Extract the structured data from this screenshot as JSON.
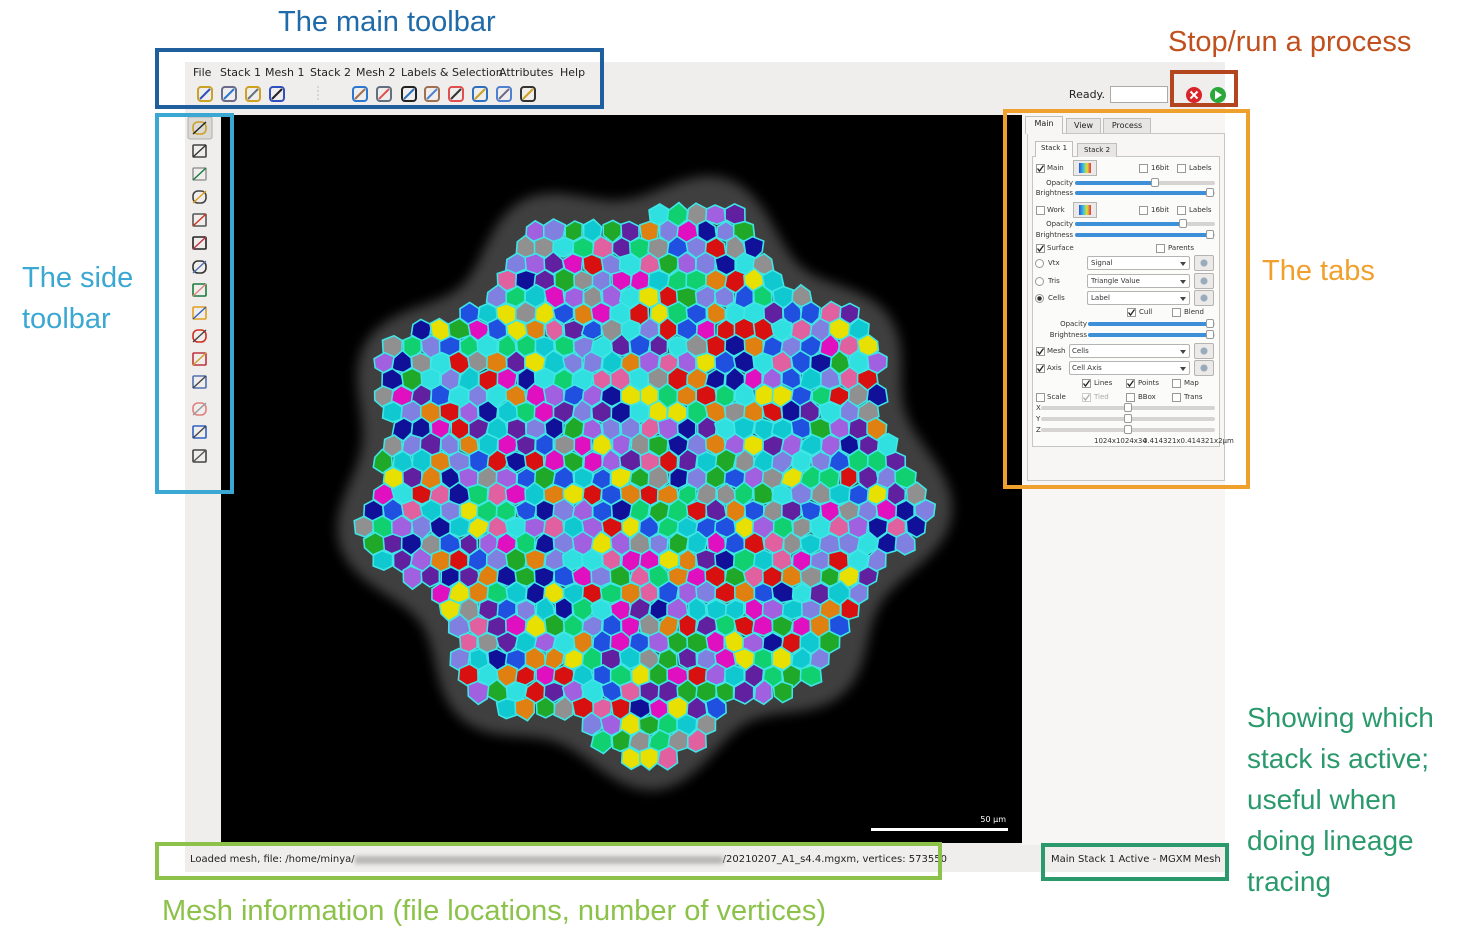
{
  "annotations": {
    "main_toolbar": "The main toolbar",
    "stop_run": "Stop/run a process",
    "side_toolbar": [
      "The side",
      "toolbar"
    ],
    "tabs": "The tabs",
    "active_stack": [
      "Showing which",
      "stack is active;",
      "useful when",
      "doing lineage",
      "tracing"
    ],
    "mesh_info": "Mesh information (file locations, number of vertices)"
  },
  "menu": [
    "File",
    "Stack 1",
    "Mesh 1",
    "Stack 2",
    "Mesh 2",
    "Labels & Selection",
    "Attributes",
    "Help"
  ],
  "status": "Ready.",
  "tabs": [
    "Main",
    "View",
    "Process"
  ],
  "stack_tabs": [
    "Stack 1",
    "Stack 2"
  ],
  "panel_labels": [
    "Main",
    "16bit",
    "Labels",
    "Opacity",
    "Brightness",
    "Work",
    "16bit",
    "Labels",
    "Opacity",
    "Brightness",
    "Surface",
    "Parents",
    "Vtx",
    "Signal",
    "Tris",
    "Triangle Value",
    "Cells",
    "Label",
    "Cull",
    "Blend",
    "Opacity",
    "Brightness",
    "Mesh",
    "Cells",
    "Axis",
    "Cell Axis",
    "Lines",
    "Points",
    "Map",
    "Scale",
    "Tied",
    "BBox",
    "Trans",
    "X",
    "Y",
    "Z",
    "1024x1024x34",
    "0.414321x0.414321x2µm"
  ],
  "scale_bar": "50 µm",
  "status_bar": {
    "prefix": "Loaded mesh, file: /home/minya/",
    "suffix": "/20210207_A1_s4.4.mgxm, vertices: 573550"
  },
  "active_stack": "Main Stack 1 Active - MGXM Mesh"
}
